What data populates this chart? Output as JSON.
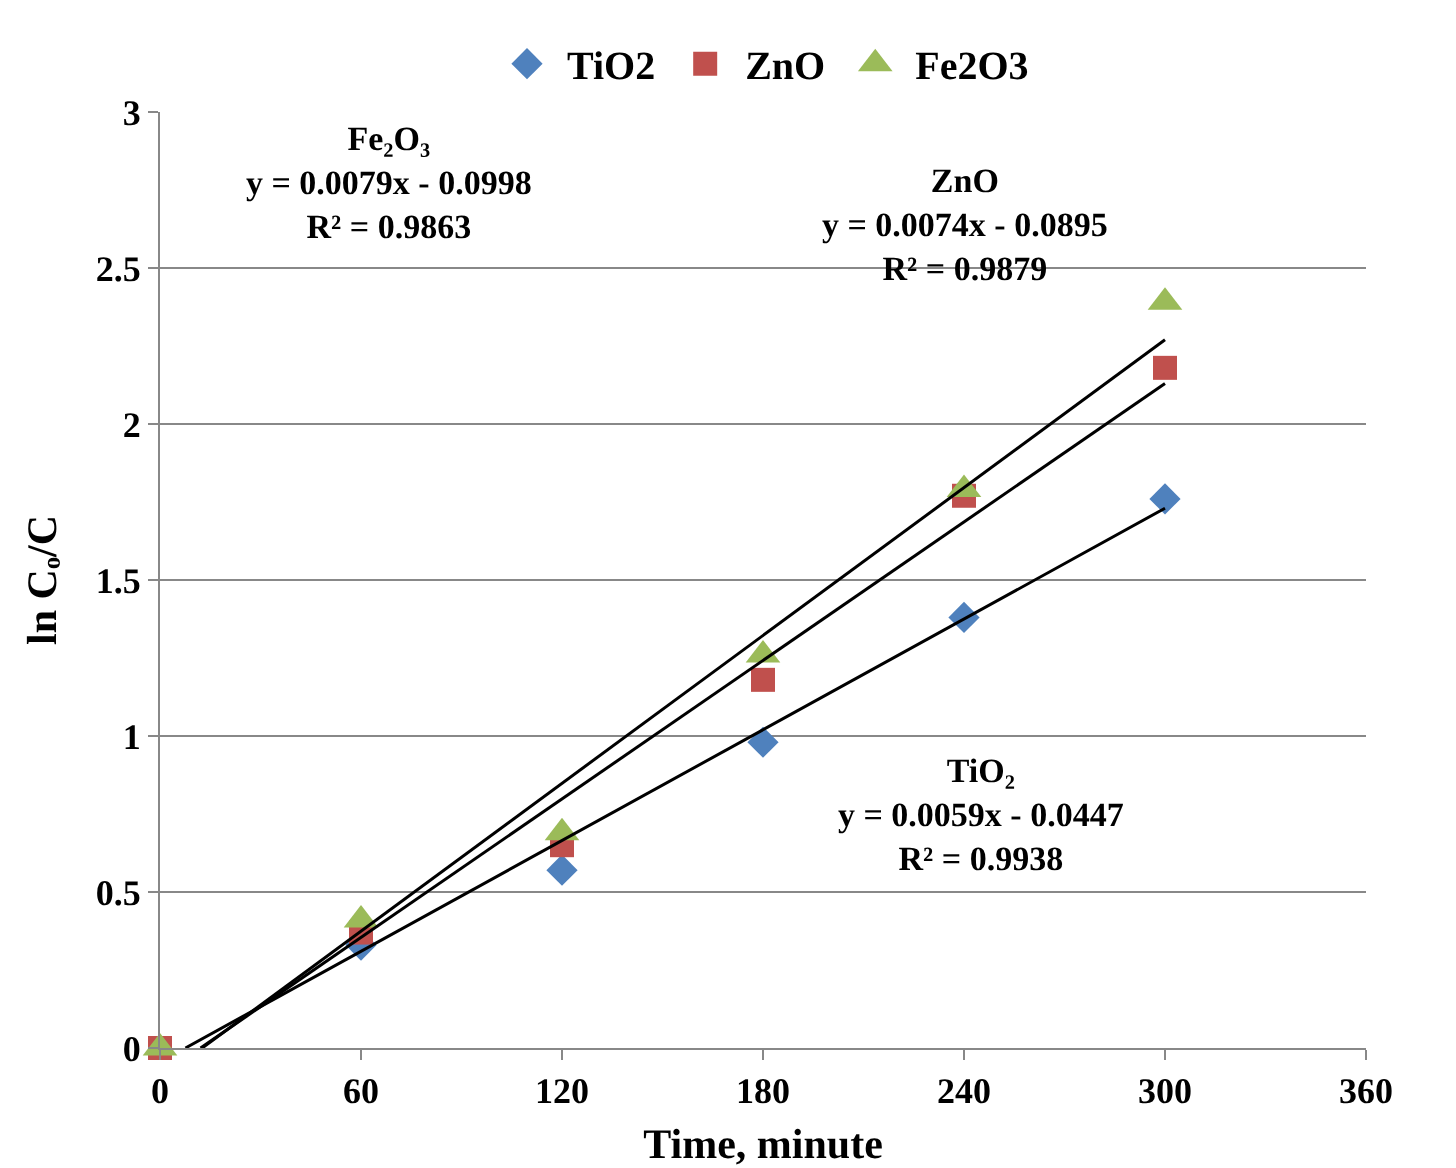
{
  "chart_data": {
    "type": "scatter",
    "xlabel": "Time, minute",
    "ylabel": "ln Cₒ/C",
    "x": [
      0,
      60,
      120,
      180,
      240,
      300
    ],
    "xlim": [
      0,
      360
    ],
    "xticks": [
      0,
      60,
      120,
      180,
      240,
      300,
      360
    ],
    "ylim": [
      0,
      3
    ],
    "yticks": [
      0,
      0.5,
      1,
      1.5,
      2,
      2.5,
      3
    ],
    "grid": "y",
    "legend": "top",
    "series": [
      {
        "name": "TiO2",
        "color": "#4f81bd",
        "marker": "diamond",
        "values": [
          null,
          0.33,
          0.57,
          0.98,
          1.38,
          1.76
        ]
      },
      {
        "name": "ZnO",
        "color": "#c0504d",
        "marker": "square",
        "values": [
          0,
          0.37,
          0.65,
          1.18,
          1.77,
          2.18
        ]
      },
      {
        "name": "Fe2O3",
        "color": "#9bbb59",
        "marker": "triangle",
        "values": [
          0,
          0.41,
          0.69,
          1.26,
          1.79,
          2.39
        ]
      },
      {
        "type": "line",
        "color": "#000000",
        "x": [
          7.6,
          300
        ],
        "values": [
          0,
          1.73
        ]
      },
      {
        "type": "line",
        "color": "#000000",
        "x": [
          12.1,
          300
        ],
        "values": [
          0,
          2.13
        ]
      },
      {
        "type": "line",
        "color": "#000000",
        "x": [
          12.6,
          300
        ],
        "values": [
          0,
          2.27
        ]
      }
    ],
    "annotations": [
      "Fe₂O₃\ny = 0.0079x - 0.0998\nR² = 0.9863",
      "ZnO\ny = 0.0074x - 0.0895\nR² = 0.9879",
      "TiO₂\ny = 0.0059x - 0.0447\nR² = 0.9938"
    ]
  }
}
